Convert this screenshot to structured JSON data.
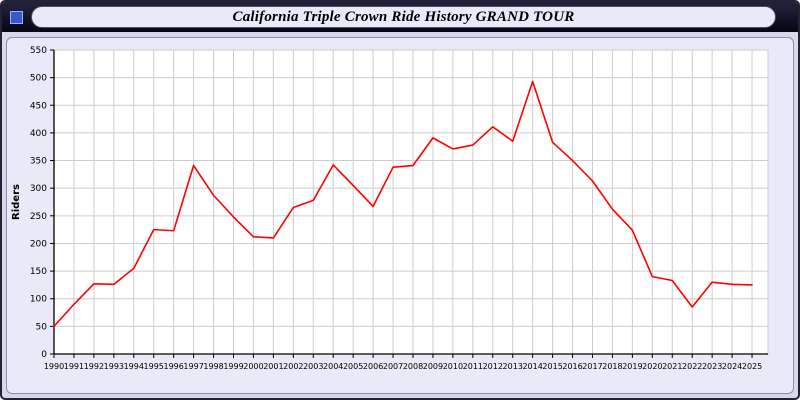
{
  "window": {
    "title": "California Triple Crown Ride History GRAND TOUR"
  },
  "theme": {
    "titlebar_bg": "#10101f",
    "title_pill_bg": "#e9e9f7",
    "panel_bg": "#e9e9f7",
    "window_icon_color": "#3a57c8"
  },
  "chart_data": {
    "type": "line",
    "title": "California Triple Crown Ride History GRAND TOUR",
    "xlabel": "",
    "ylabel": "Riders",
    "ylim": [
      0,
      550
    ],
    "ytick": 50,
    "grid": true,
    "legend_position": "none",
    "line_color": "#ff0000",
    "axis_color": "#000000",
    "grid_color": "#cccccc",
    "plot_bg": "#ffffff",
    "x": [
      "1990",
      "1991",
      "1992",
      "1993",
      "1994",
      "1995",
      "1996",
      "1997",
      "1998",
      "1999",
      "2000",
      "2001",
      "2002",
      "2003",
      "2004",
      "2005",
      "2006",
      "2007",
      "2008",
      "2009",
      "2010",
      "2011",
      "2012",
      "2013",
      "2014",
      "2015",
      "2016",
      "2017",
      "2018",
      "2019",
      "2020",
      "2021",
      "2022",
      "2023",
      "2024",
      "2025"
    ],
    "values": [
      50,
      90,
      127,
      126,
      155,
      225,
      223,
      341,
      287,
      248,
      212,
      210,
      265,
      278,
      342,
      305,
      267,
      338,
      341,
      391,
      371,
      378,
      411,
      385,
      493,
      383,
      350,
      313,
      262,
      224,
      140,
      133,
      85,
      130,
      126,
      125
    ]
  }
}
